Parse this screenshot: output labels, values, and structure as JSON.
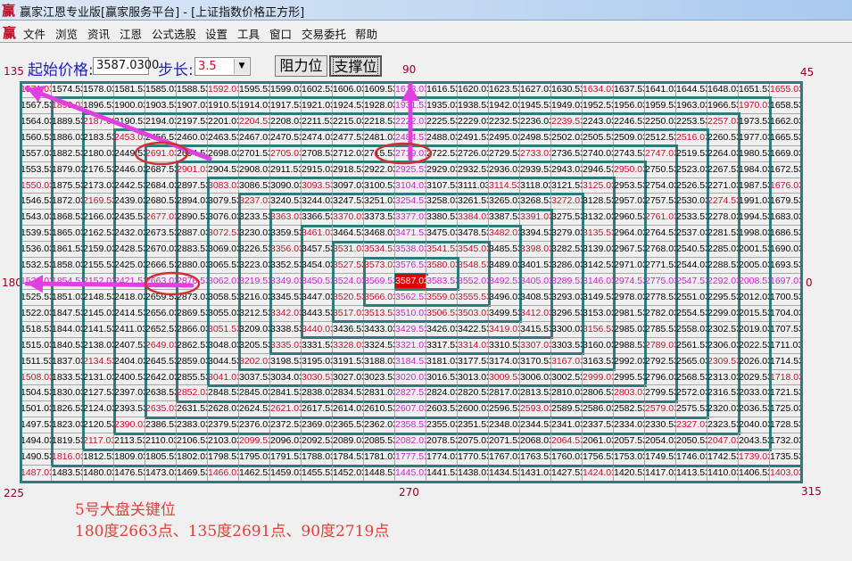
{
  "window": {
    "title": "赢家江恩专业版[赢家服务平台] - [上证指数价格正方形]",
    "logo_text": "赢"
  },
  "menu": {
    "logo_text": "赢",
    "items": [
      "文件",
      "浏览",
      "资讯",
      "江恩",
      "公式选股",
      "设置",
      "工具",
      "窗口",
      "交易委托",
      "帮助"
    ]
  },
  "controls": {
    "start_price_label": "起始价格:",
    "start_price_value": "3587.0300",
    "step_label": "步长:",
    "step_value": "3.5",
    "resistance_button": "阻力位",
    "support_button": "支撑位",
    "active_mode": "支撑位"
  },
  "angles": {
    "a135": "135",
    "a90": "90",
    "a45": "45",
    "a180": "180",
    "a0": "0",
    "a225": "225",
    "a270": "270",
    "a315": "315"
  },
  "grid": {
    "start_price": 3587.03,
    "step": 3.5,
    "rings": 12,
    "direction": "counterclockwise, values decreasing outward",
    "colors": {
      "angle_cells": "#c8102e",
      "cardinal_cells": "#d020d0",
      "center_bg": "#e00000",
      "ring_border": "#2d7b7c"
    }
  },
  "annotations": {
    "title": "5号大盘关键位",
    "detail": "180度2663点、135度2691点、90度2719点",
    "circled_values": [
      "2691.03",
      "2719.03",
      "2663.03"
    ],
    "arrow_color": "#e040e0",
    "circle_color": "#d03030"
  }
}
